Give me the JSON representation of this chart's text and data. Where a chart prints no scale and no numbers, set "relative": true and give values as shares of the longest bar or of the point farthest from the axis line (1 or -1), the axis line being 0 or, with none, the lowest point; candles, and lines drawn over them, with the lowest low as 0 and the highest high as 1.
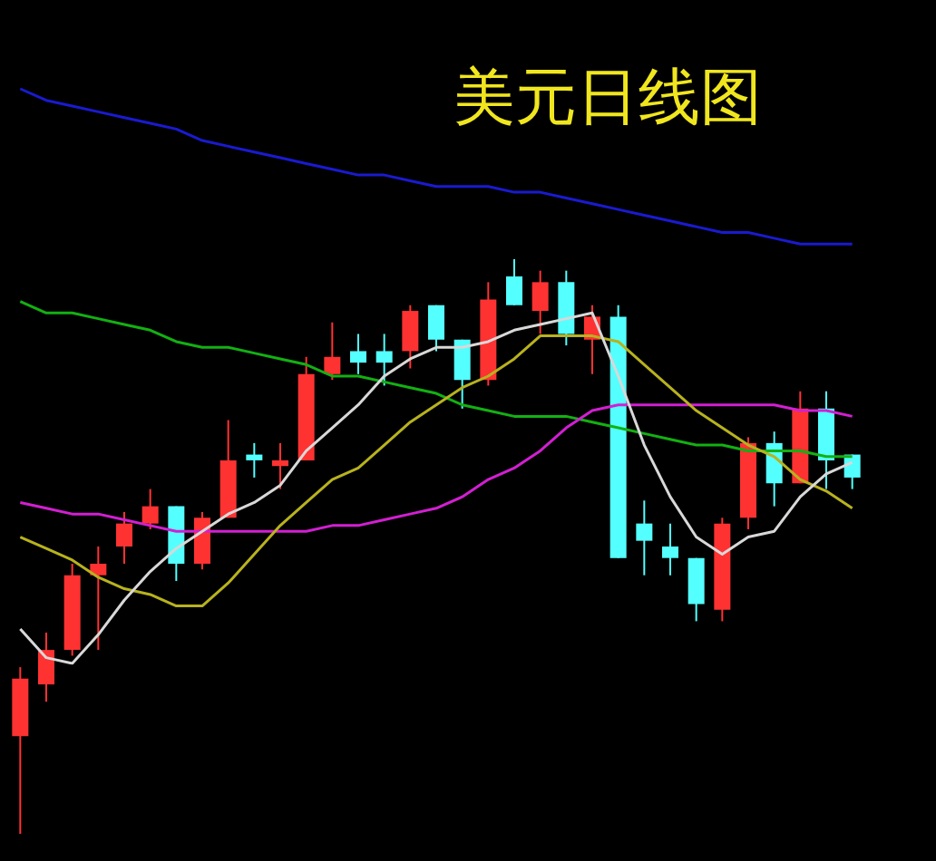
{
  "chart_data": [
    {
      "type": "candlestick",
      "relative": true,
      "categories": [
        null,
        null,
        null,
        null,
        null,
        null,
        null,
        null,
        null,
        null,
        null,
        null,
        null,
        null,
        null,
        null,
        null,
        null,
        null,
        null,
        null,
        null,
        null,
        null,
        null,
        null,
        null,
        null,
        null,
        null,
        null,
        null,
        null
      ],
      "ohlc": [
        [
          0.17,
          0.29,
          0,
          0.27
        ],
        [
          0.26,
          0.35,
          0.23,
          0.32
        ],
        [
          0.32,
          0.47,
          0.31,
          0.45
        ],
        [
          0.45,
          0.5,
          0.32,
          0.47
        ],
        [
          0.5,
          0.56,
          0.47,
          0.54
        ],
        [
          0.54,
          0.6,
          0.53,
          0.57
        ],
        [
          0.57,
          0.57,
          0.44,
          0.47
        ],
        [
          0.47,
          0.56,
          0.46,
          0.55
        ],
        [
          0.55,
          0.72,
          0.55,
          0.65
        ],
        [
          0.66,
          0.68,
          0.62,
          0.65
        ],
        [
          0.64,
          0.68,
          0.6,
          0.65
        ],
        [
          0.65,
          0.83,
          0.65,
          0.8
        ],
        [
          0.8,
          0.89,
          0.79,
          0.83
        ],
        [
          0.84,
          0.87,
          0.8,
          0.82
        ],
        [
          0.84,
          0.87,
          0.78,
          0.82
        ],
        [
          0.84,
          0.92,
          0.81,
          0.91
        ],
        [
          0.92,
          0.92,
          0.84,
          0.86
        ],
        [
          0.86,
          0.86,
          0.74,
          0.79
        ],
        [
          0.79,
          0.96,
          0.78,
          0.93
        ],
        [
          0.97,
          1,
          0.92,
          0.92
        ],
        [
          0.91,
          0.98,
          0.87,
          0.96
        ],
        [
          0.96,
          0.98,
          0.85,
          0.87
        ],
        [
          0.86,
          0.92,
          0.8,
          0.9
        ],
        [
          0.9,
          0.92,
          0.48,
          0.48
        ],
        [
          0.54,
          0.58,
          0.45,
          0.51
        ],
        [
          0.5,
          0.54,
          0.45,
          0.48
        ],
        [
          0.48,
          0.48,
          0.37,
          0.4
        ],
        [
          0.39,
          0.55,
          0.37,
          0.54
        ],
        [
          0.55,
          0.69,
          0.53,
          0.68
        ],
        [
          0.68,
          0.7,
          0.57,
          0.61
        ],
        [
          0.61,
          0.77,
          0.61,
          0.74
        ],
        [
          0.74,
          0.77,
          0.6,
          0.65
        ],
        [
          0.66,
          0.66,
          0.6,
          0.62
        ]
      ],
      "colors": [
        "#ff3232",
        "#ff3232",
        "#ff3232",
        "#ff3232",
        "#ff3232",
        "#ff3232",
        "#54ffff",
        "#ff3232",
        "#ff3232",
        "#54ffff",
        "#ff3232",
        "#ff3232",
        "#ff3232",
        "#54ffff",
        "#54ffff",
        "#ff3232",
        "#54ffff",
        "#54ffff",
        "#ff3232",
        "#54ffff",
        "#ff3232",
        "#54ffff",
        "#ff3232",
        "#54ffff",
        "#54ffff",
        "#54ffff",
        "#54ffff",
        "#ff3232",
        "#ff3232",
        "#54ffff",
        "#ff3232",
        "#54ffff",
        "#54ffff"
      ]
    },
    {
      "type": "line",
      "title": "美元日线图",
      "relative": true,
      "marker": "none",
      "categories": [
        null,
        null,
        null,
        null,
        null,
        null,
        null,
        null,
        null,
        null,
        null,
        null,
        null,
        null,
        null,
        null,
        null,
        null,
        null,
        null,
        null,
        null,
        null,
        null,
        null,
        null,
        null,
        null,
        null,
        null,
        null,
        null,
        null
      ],
      "series": [
        {
          "color": "#1a1ad0",
          "values": [
            1,
            0.98,
            0.97,
            0.96,
            0.95,
            0.94,
            0.93,
            0.91,
            0.9,
            0.89,
            0.88,
            0.87,
            0.86,
            0.85,
            0.85,
            0.84,
            0.83,
            0.83,
            0.83,
            0.82,
            0.82,
            0.81,
            0.8,
            0.79,
            0.78,
            0.77,
            0.76,
            0.75,
            0.75,
            0.74,
            0.73,
            0.73,
            0.73
          ]
        },
        {
          "color": "#13b013",
          "values": [
            0.63,
            0.61,
            0.61,
            0.6,
            0.59,
            0.58,
            0.56,
            0.55,
            0.55,
            0.54,
            0.53,
            0.52,
            0.5,
            0.5,
            0.49,
            0.48,
            0.47,
            0.45,
            0.44,
            0.43,
            0.43,
            0.43,
            0.42,
            0.41,
            0.4,
            0.39,
            0.38,
            0.38,
            0.37,
            0.37,
            0.37,
            0.36,
            0.36
          ]
        },
        {
          "color": "#d21fd2",
          "values": [
            0.28,
            0.27,
            0.26,
            0.26,
            0.25,
            0.24,
            0.23,
            0.23,
            0.23,
            0.23,
            0.23,
            0.23,
            0.24,
            0.24,
            0.25,
            0.26,
            0.27,
            0.29,
            0.32,
            0.34,
            0.37,
            0.41,
            0.44,
            0.45,
            0.45,
            0.45,
            0.45,
            0.45,
            0.45,
            0.45,
            0.44,
            0.44,
            0.43
          ]
        },
        {
          "color": "#b8b21e",
          "values": [
            0.22,
            0.2,
            0.18,
            0.15,
            0.13,
            0.12,
            0.1,
            0.1,
            0.14,
            0.19,
            0.24,
            0.28,
            0.32,
            0.34,
            0.38,
            0.42,
            0.45,
            0.48,
            0.5,
            0.53,
            0.57,
            0.57,
            0.57,
            0.56,
            0.52,
            0.48,
            0.44,
            0.41,
            0.38,
            0.36,
            0.32,
            0.3,
            0.27
          ]
        },
        {
          "color": "#d8d8d8",
          "values": [
            0.06,
            0.01,
            0,
            0.05,
            0.11,
            0.16,
            0.2,
            0.23,
            0.26,
            0.28,
            0.31,
            0.37,
            0.41,
            0.45,
            0.5,
            0.53,
            0.55,
            0.55,
            0.56,
            0.58,
            0.59,
            0.6,
            0.61,
            0.5,
            0.38,
            0.29,
            0.22,
            0.19,
            0.22,
            0.23,
            0.29,
            0.33,
            0.35
          ]
        }
      ]
    }
  ]
}
